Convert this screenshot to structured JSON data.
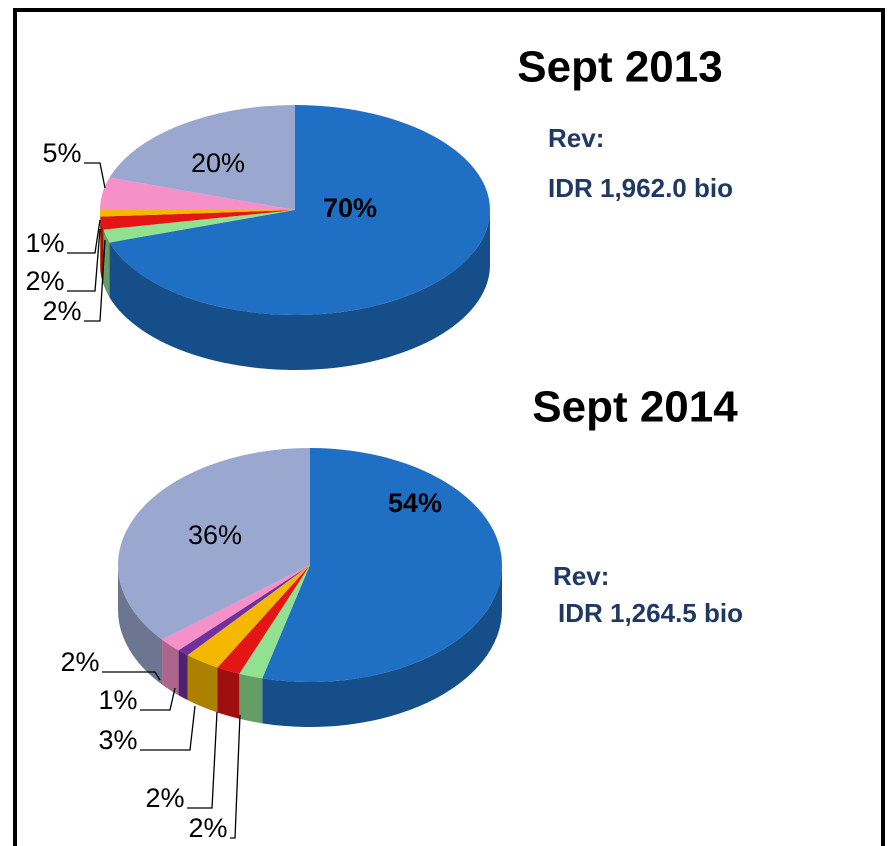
{
  "chart_data": [
    {
      "type": "pie",
      "title": "Sept 2013",
      "annotations": [
        "Rev:",
        "IDR  1,962.0 bio"
      ],
      "values": [
        70,
        2,
        2,
        1,
        5,
        20
      ],
      "value_labels": [
        "70%",
        "2%",
        "2%",
        "1%",
        "5%",
        "20%"
      ],
      "colors": [
        "#1f6fc5",
        "#90e290",
        "#e31515",
        "#f5b800",
        "#f590c8",
        "#9aa8cf"
      ]
    },
    {
      "type": "pie",
      "title": "Sept 2014",
      "annotations": [
        "Rev:",
        "IDR  1,264.5 bio"
      ],
      "values": [
        54,
        2,
        2,
        3,
        1,
        2,
        36
      ],
      "value_labels": [
        "54%",
        "2%",
        "2%",
        "3%",
        "1%",
        "2%",
        "36%"
      ],
      "colors": [
        "#1f6fc5",
        "#90e290",
        "#e31515",
        "#f5b800",
        "#7030a0",
        "#f590c8",
        "#9aa8cf"
      ]
    }
  ]
}
